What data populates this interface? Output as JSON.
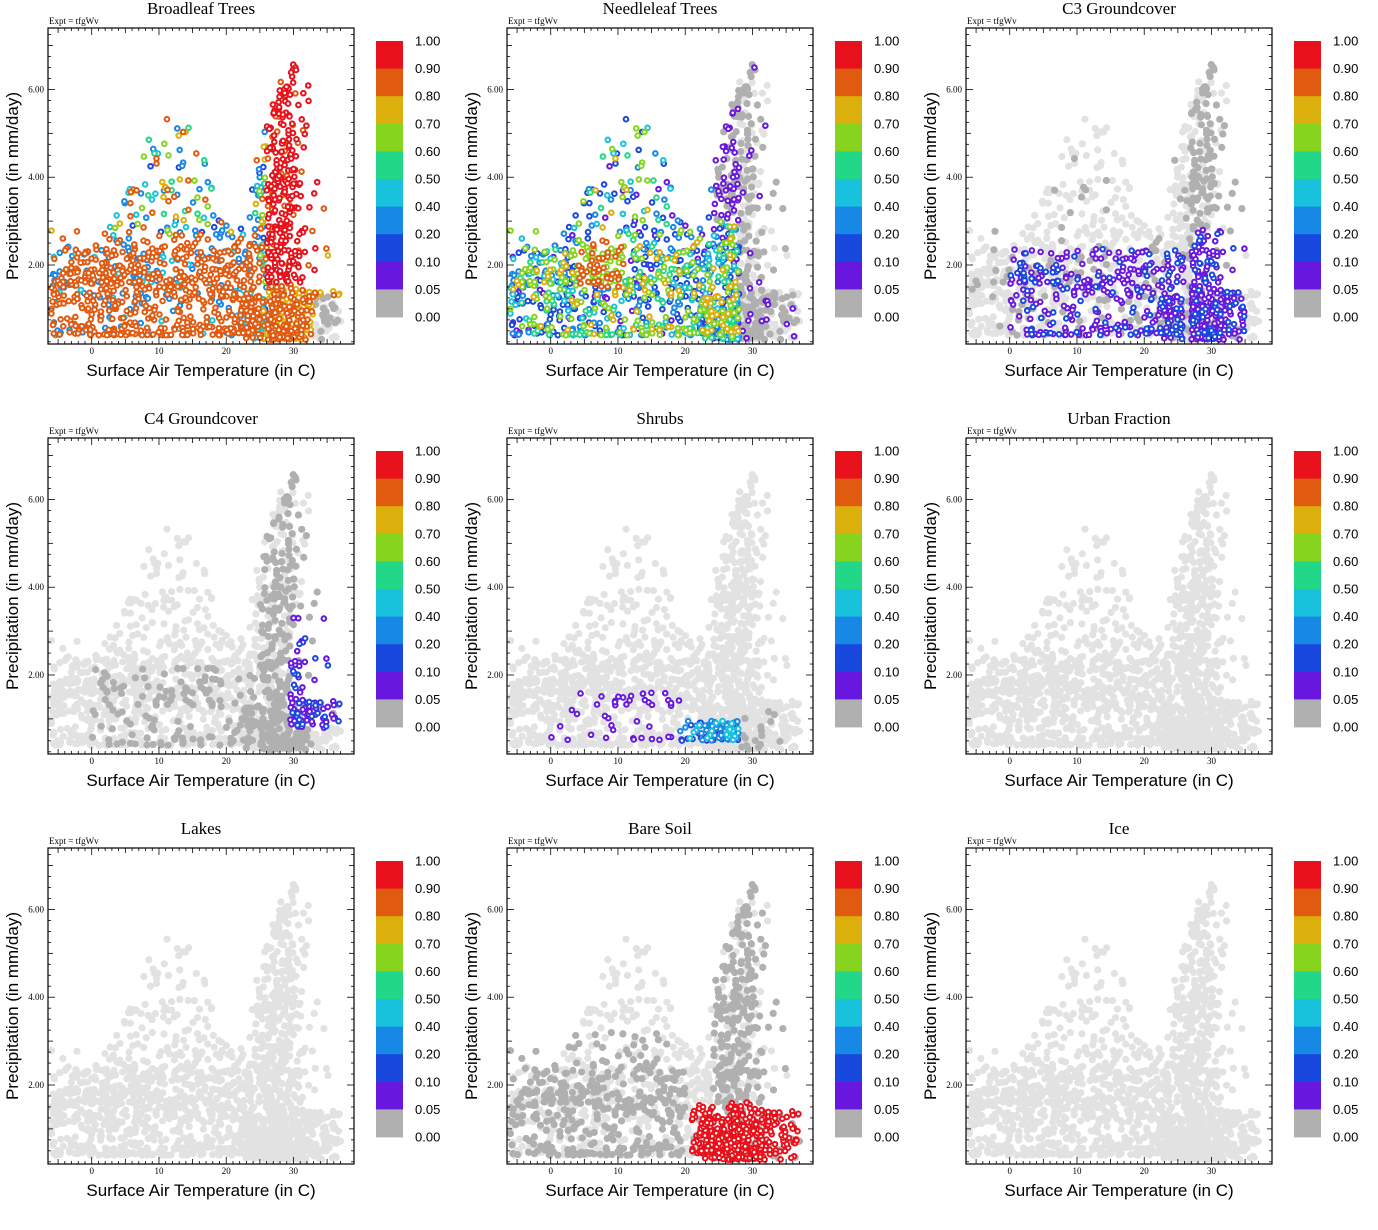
{
  "figure": {
    "experiment_label": "Expt = tfgWv",
    "xlabel": "Surface Air Temperature (in C)",
    "ylabel": "Precipitation (in mm/day)",
    "xlim": [
      -6.5,
      39
    ],
    "ylim": [
      0.2,
      7.4
    ],
    "x_ticks": [
      0,
      10,
      20,
      30
    ],
    "y_ticks": [
      "2.00",
      "4.00",
      "6.00"
    ],
    "colorbar_labels": [
      "1.00",
      "0.90",
      "0.80",
      "0.70",
      "0.60",
      "0.50",
      "0.40",
      "0.20",
      "0.10",
      "0.05",
      "0.00"
    ],
    "colorbar_colors": [
      "#e8101a",
      "#e05a10",
      "#dcb00c",
      "#86d41e",
      "#22d888",
      "#18c2dc",
      "#1888e6",
      "#1848de",
      "#6818de",
      "#b0b0b0"
    ],
    "absent_color": "#e2e2e2"
  },
  "chart_data": [
    {
      "type": "scatter",
      "title": "Broadleaf Trees",
      "xlabel": "Surface Air Temperature (in C)",
      "ylabel": "Precipitation (in mm/day)",
      "cover_pattern": "broadleaf"
    },
    {
      "type": "scatter",
      "title": "Needleleaf Trees",
      "xlabel": "Surface Air Temperature (in C)",
      "ylabel": "Precipitation (in mm/day)",
      "cover_pattern": "needleleaf"
    },
    {
      "type": "scatter",
      "title": "C3 Groundcover",
      "xlabel": "Surface Air Temperature (in C)",
      "ylabel": "Precipitation (in mm/day)",
      "cover_pattern": "c3"
    },
    {
      "type": "scatter",
      "title": "C4 Groundcover",
      "xlabel": "Surface Air Temperature (in C)",
      "ylabel": "Precipitation (in mm/day)",
      "cover_pattern": "c4"
    },
    {
      "type": "scatter",
      "title": "Shrubs",
      "xlabel": "Surface Air Temperature (in C)",
      "ylabel": "Precipitation (in mm/day)",
      "cover_pattern": "shrubs"
    },
    {
      "type": "scatter",
      "title": "Urban Fraction",
      "xlabel": "Surface Air Temperature (in C)",
      "ylabel": "Precipitation (in mm/day)",
      "cover_pattern": "none"
    },
    {
      "type": "scatter",
      "title": "Lakes",
      "xlabel": "Surface Air Temperature (in C)",
      "ylabel": "Precipitation (in mm/day)",
      "cover_pattern": "none"
    },
    {
      "type": "scatter",
      "title": "Bare Soil",
      "xlabel": "Surface Air Temperature (in C)",
      "ylabel": "Precipitation (in mm/day)",
      "cover_pattern": "baresoil"
    },
    {
      "type": "scatter",
      "title": "Ice",
      "xlabel": "Surface Air Temperature (in C)",
      "ylabel": "Precipitation (in mm/day)",
      "cover_pattern": "none"
    }
  ]
}
